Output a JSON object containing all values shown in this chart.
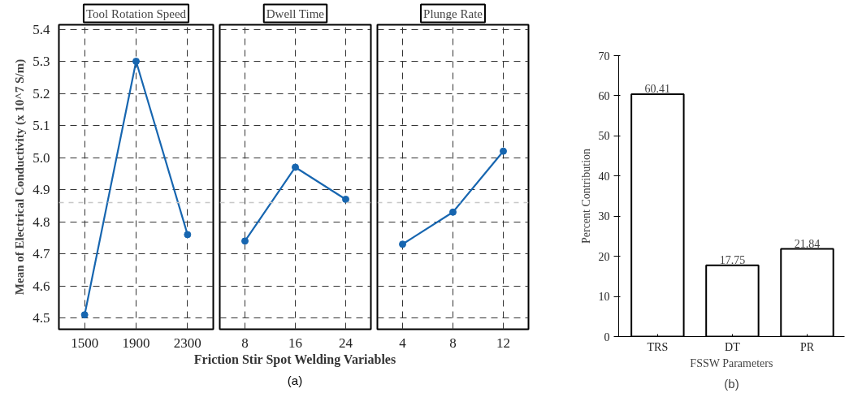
{
  "chart_data": [
    {
      "type": "line",
      "title": "Tool Rotation Speed",
      "ylabel": "Mean of Electrical Conductivity (x 10^7 S/m)",
      "categories": [
        "1500",
        "1900",
        "2300"
      ],
      "values": [
        4.51,
        5.3,
        4.76
      ],
      "color": "#1766b0",
      "marker": "circle",
      "line_style": "solid",
      "ylim": [
        4.465,
        5.414
      ],
      "yticks": [
        4.5,
        4.6,
        4.7,
        4.8,
        4.9,
        {
          "value": 5.0,
          "label": "5.0"
        },
        5.1,
        5.2,
        5.3,
        5.4
      ],
      "grid": true,
      "ref_lines": [
        {
          "axis": "y",
          "value": 4.86,
          "color": "#c8c8c8",
          "line_style": "dashed"
        }
      ]
    },
    {
      "type": "line",
      "title": "Dwell Time",
      "xlabel": "Friction Stir Spot Welding Variables",
      "annotations": [
        "(a)"
      ],
      "categories": [
        "8",
        "16",
        "24"
      ],
      "values": [
        4.74,
        4.97,
        4.87
      ],
      "color": "#1766b0",
      "marker": "circle",
      "line_style": "solid",
      "ylim": [
        4.465,
        5.414
      ],
      "yticks": [
        4.5,
        4.6,
        4.7,
        4.8,
        4.9,
        5,
        5.1,
        5.2,
        5.3,
        5.4
      ],
      "grid": true,
      "tick_labels": "x",
      "ref_lines": [
        {
          "axis": "y",
          "value": 4.86,
          "color": "#c8c8c8",
          "line_style": "dashed"
        }
      ]
    },
    {
      "type": "line",
      "title": "Plunge Rate",
      "categories": [
        "4",
        "8",
        "12"
      ],
      "values": [
        4.73,
        4.83,
        5.02
      ],
      "color": "#1766b0",
      "marker": "circle",
      "line_style": "solid",
      "ylim": [
        4.465,
        5.414
      ],
      "yticks": [
        4.5,
        4.6,
        4.7,
        4.8,
        4.9,
        5,
        5.1,
        5.2,
        5.3,
        5.4
      ],
      "grid": true,
      "tick_labels": "x",
      "ref_lines": [
        {
          "axis": "y",
          "value": 4.86,
          "color": "#c8c8c8",
          "line_style": "dashed"
        }
      ]
    },
    {
      "type": "bar",
      "xlabel": "FSSW Parameters",
      "ylabel": "Percent Contribution",
      "annotations": [
        "(b)"
      ],
      "categories": [
        "TRS",
        "DT",
        "PR"
      ],
      "values": [
        60.41,
        17.75,
        21.84
      ],
      "color": "#ffffff",
      "data_labels": true,
      "ylim": [
        0,
        70
      ],
      "yticks": [
        0,
        10,
        20,
        30,
        40,
        50,
        60,
        70
      ]
    }
  ]
}
